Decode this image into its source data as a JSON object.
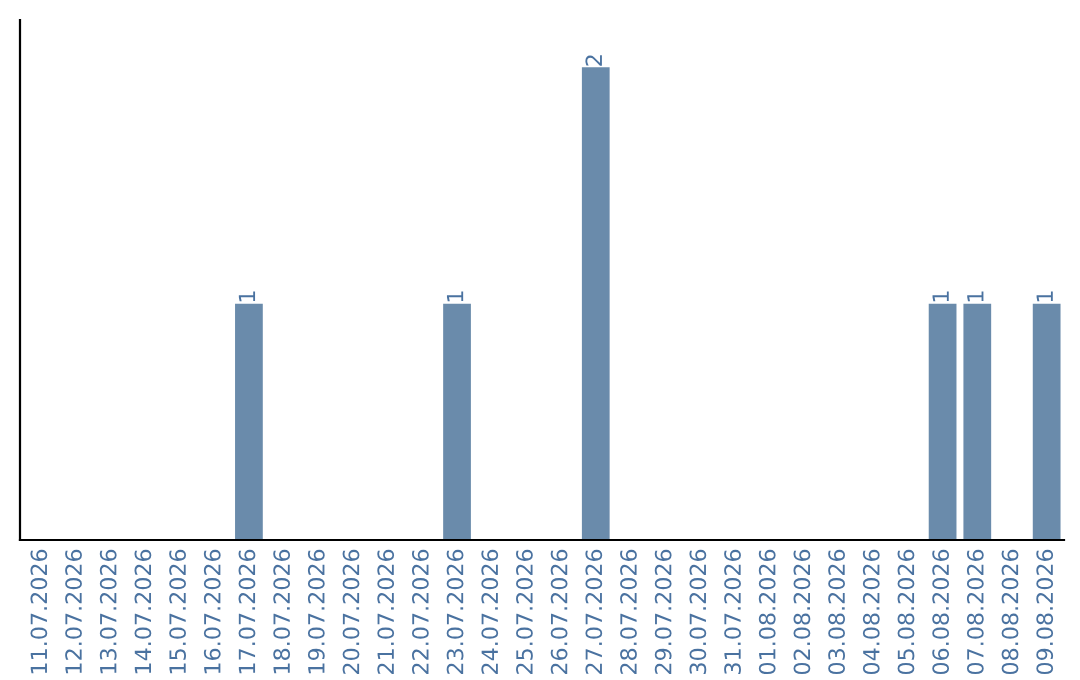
{
  "chart_data": {
    "type": "bar",
    "categories": [
      "11.07.2026",
      "12.07.2026",
      "13.07.2026",
      "14.07.2026",
      "15.07.2026",
      "16.07.2026",
      "17.07.2026",
      "18.07.2026",
      "19.07.2026",
      "20.07.2026",
      "21.07.2026",
      "22.07.2026",
      "23.07.2026",
      "24.07.2026",
      "25.07.2026",
      "26.07.2026",
      "27.07.2026",
      "28.07.2026",
      "29.07.2026",
      "30.07.2026",
      "31.07.2026",
      "01.08.2026",
      "02.08.2026",
      "03.08.2026",
      "04.08.2026",
      "05.08.2026",
      "06.08.2026",
      "07.08.2026",
      "08.08.2026",
      "09.08.2026"
    ],
    "values": [
      0,
      0,
      0,
      0,
      0,
      0,
      1,
      0,
      0,
      0,
      0,
      0,
      1,
      0,
      0,
      0,
      2,
      0,
      0,
      0,
      0,
      0,
      0,
      0,
      0,
      0,
      1,
      1,
      0,
      1
    ],
    "value_labels": [
      null,
      null,
      null,
      null,
      null,
      null,
      "1",
      null,
      null,
      null,
      null,
      null,
      "1",
      null,
      null,
      null,
      "2",
      null,
      null,
      null,
      null,
      null,
      null,
      null,
      null,
      null,
      "1",
      "1",
      null,
      "1"
    ],
    "color": "#6a8bab",
    "grid": false,
    "legend": false
  }
}
